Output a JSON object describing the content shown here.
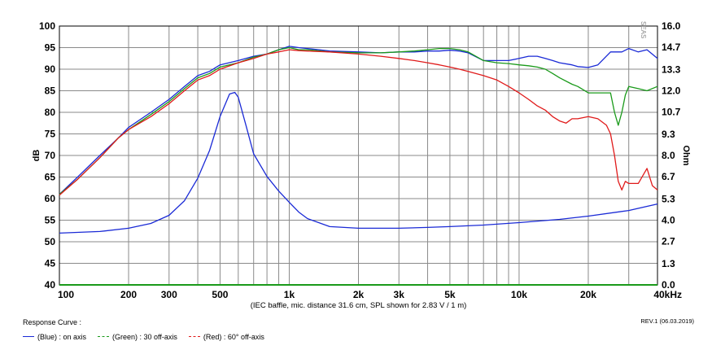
{
  "chart_data": {
    "type": "line",
    "xscale": "log",
    "xlim": [
      100,
      40000
    ],
    "ylim": [
      40,
      100
    ],
    "ylim_right": [
      0,
      16
    ],
    "ylabel": "dB",
    "ylabel_right": "Ohm",
    "xlabel": "(IEC baffle, mic. distance 31.6 cm, SPL shown for 2.83 V / 1 m)",
    "x_ticks": [
      100,
      200,
      300,
      500,
      1000,
      2000,
      3000,
      5000,
      10000,
      20000,
      40000
    ],
    "x_tick_labels": [
      "100",
      "200",
      "300",
      "500",
      "1k",
      "2k",
      "3k",
      "5k",
      "10k",
      "20k",
      "40kHz"
    ],
    "y_ticks": [
      100,
      95,
      90,
      85,
      80,
      75,
      70,
      65,
      60,
      55,
      50,
      45,
      40
    ],
    "y_ticks_right": [
      "16.0",
      "14.7",
      "13.3",
      "12.0",
      "10.7",
      "9.3",
      "8.0",
      "6.7",
      "5.3",
      "4.0",
      "2.7",
      "1.3",
      "0.0"
    ],
    "grid": true,
    "series": [
      {
        "name": "(Blue)  : on axis",
        "color": "#1a2ad6",
        "axis": "left",
        "x": [
          100,
          120,
          150,
          180,
          200,
          250,
          300,
          350,
          400,
          450,
          500,
          600,
          700,
          800,
          900,
          1000,
          1100,
          1200,
          1500,
          2000,
          2500,
          3000,
          3500,
          4000,
          4500,
          5000,
          5500,
          6000,
          7000,
          8000,
          9000,
          10000,
          11000,
          12000,
          13000,
          14000,
          15000,
          17000,
          18000,
          20000,
          22000,
          25000,
          28000,
          30000,
          33000,
          36000,
          40000
        ],
        "y": [
          61,
          65,
          70,
          74,
          76.5,
          80,
          83,
          86,
          88.5,
          89.5,
          91,
          92,
          93,
          93.5,
          94.5,
          95.3,
          95,
          94.8,
          94.2,
          94,
          93.8,
          94,
          94,
          94.2,
          94.2,
          94.4,
          94.2,
          93.8,
          92,
          92,
          92,
          92.5,
          93,
          93,
          92.5,
          92,
          91.5,
          91,
          90.6,
          90.4,
          91,
          94,
          94,
          94.8,
          94,
          94.5,
          92.5
        ]
      },
      {
        "name": "(Green) : 30 off-axis",
        "color": "#1a9a1a",
        "axis": "left",
        "dash": "4,2",
        "x": [
          100,
          120,
          150,
          180,
          200,
          250,
          300,
          350,
          400,
          450,
          500,
          600,
          700,
          800,
          900,
          1000,
          1100,
          1200,
          1500,
          2000,
          2500,
          3000,
          3500,
          4000,
          4500,
          5000,
          5500,
          6000,
          7000,
          8000,
          9000,
          10000,
          11000,
          12000,
          13000,
          14000,
          15000,
          17000,
          18000,
          20000,
          22000,
          25000,
          26000,
          27000,
          28000,
          29000,
          30000,
          33000,
          36000,
          40000
        ],
        "y": [
          61,
          64.5,
          69.5,
          74,
          76,
          79.5,
          82.5,
          85.5,
          88,
          89,
          90.5,
          91.5,
          92.8,
          93.5,
          94.5,
          95,
          94.5,
          94.5,
          94,
          93.8,
          93.8,
          94,
          94.2,
          94.5,
          94.8,
          94.8,
          94.5,
          94,
          92,
          91.5,
          91.3,
          91,
          90.8,
          90.5,
          90,
          89,
          88,
          86.5,
          86,
          84.5,
          84.5,
          84.5,
          80,
          77,
          80,
          84,
          86,
          85.5,
          85,
          86
        ]
      },
      {
        "name": "(Red)  : 60° off-axis",
        "color": "#e01a1a",
        "axis": "left",
        "dash": "4,2",
        "x": [
          100,
          120,
          150,
          180,
          200,
          250,
          300,
          350,
          400,
          450,
          500,
          600,
          700,
          800,
          900,
          1000,
          1100,
          1200,
          1500,
          2000,
          2500,
          3000,
          3500,
          4000,
          4500,
          5000,
          5500,
          6000,
          7000,
          8000,
          9000,
          10000,
          11000,
          12000,
          13000,
          14000,
          15000,
          16000,
          17000,
          18000,
          20000,
          22000,
          24000,
          25000,
          26000,
          27000,
          28000,
          29000,
          30000,
          33000,
          36000,
          38000,
          40000
        ],
        "y": [
          60.8,
          64.5,
          69.5,
          74,
          76,
          79,
          82,
          85,
          87.5,
          88.5,
          90,
          91.5,
          92.5,
          93.5,
          94,
          94.5,
          94.3,
          94.2,
          94,
          93.5,
          93,
          92.5,
          92,
          91.5,
          91,
          90.5,
          90,
          89.5,
          88.5,
          87.5,
          86,
          84.5,
          83,
          81.5,
          80.5,
          79,
          78,
          77.5,
          78.5,
          78.5,
          79,
          78.5,
          77,
          75,
          70,
          64,
          62,
          64,
          63.5,
          63.5,
          67,
          63,
          62
        ]
      },
      {
        "name": "Impedance",
        "color": "#1a2ad6",
        "axis": "right",
        "x": [
          100,
          150,
          200,
          250,
          300,
          350,
          400,
          450,
          500,
          550,
          580,
          600,
          650,
          700,
          800,
          900,
          1000,
          1100,
          1200,
          1500,
          2000,
          2500,
          3000,
          4000,
          5000,
          7000,
          10000,
          15000,
          20000,
          30000,
          40000
        ],
        "y": [
          3.2,
          3.3,
          3.5,
          3.8,
          4.3,
          5.2,
          6.6,
          8.3,
          10.4,
          11.8,
          11.9,
          11.6,
          9.8,
          8.1,
          6.7,
          5.8,
          5.1,
          4.5,
          4.1,
          3.6,
          3.5,
          3.5,
          3.5,
          3.55,
          3.6,
          3.7,
          3.85,
          4.05,
          4.25,
          4.6,
          5.0
        ]
      }
    ]
  },
  "legend": {
    "title": "Response Curve :",
    "items": [
      {
        "label": "(Blue)  : on axis",
        "color": "#1a2ad6",
        "style": "solid"
      },
      {
        "label": "(Green) : 30 off-axis",
        "color": "#1a9a1a",
        "style": "dashed"
      },
      {
        "label": "(Red)  : 60° off-axis",
        "color": "#e01a1a",
        "style": "dashed"
      }
    ]
  },
  "revision": "REV.1 (06.03.2019)",
  "brand_mark": "SEAS"
}
